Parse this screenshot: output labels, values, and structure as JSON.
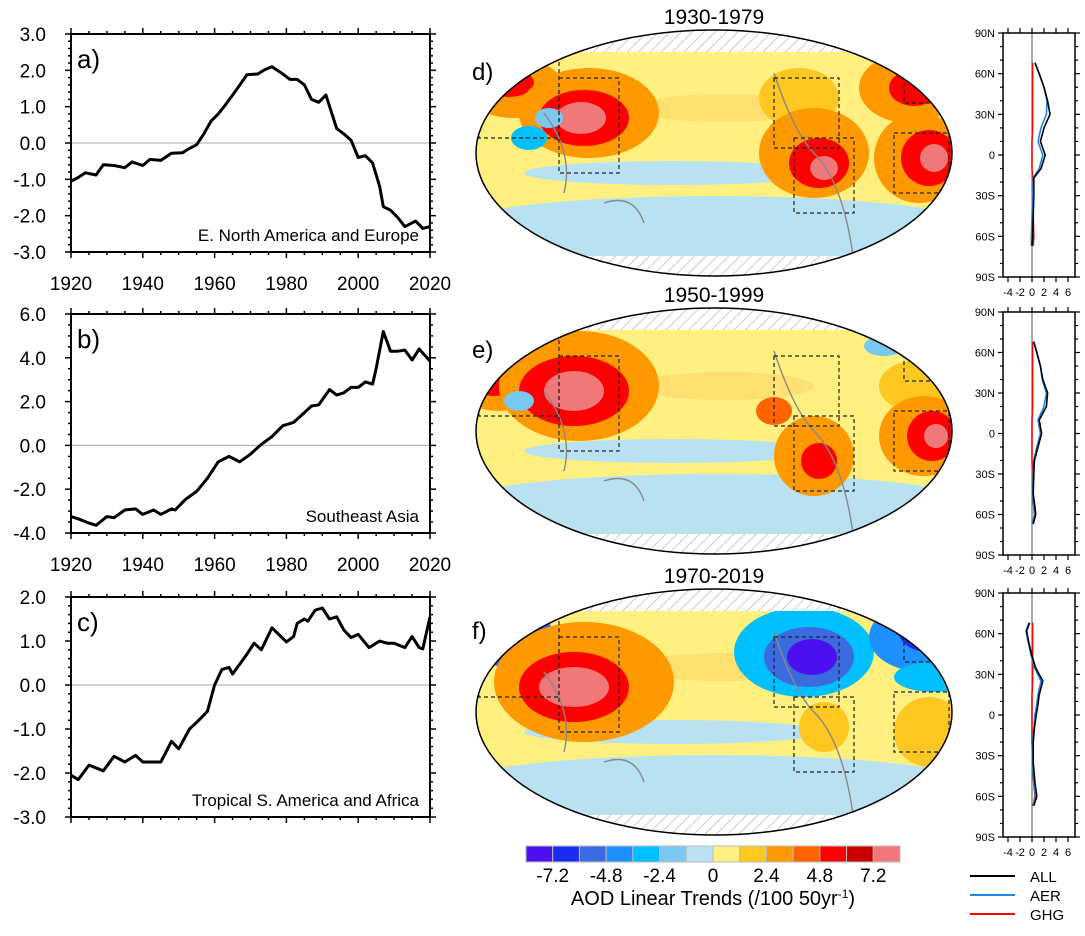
{
  "colors": {
    "line": "#000000",
    "zero_line": "#bbbbbb",
    "all": "#000000",
    "aer": "#1e88e5",
    "ghg": "#ff0000",
    "ocean_base": "#fff080",
    "hatch": "#999999"
  },
  "chart_data": [
    {
      "type": "line",
      "panel_label": "a)",
      "region": "E. North America and Europe",
      "xlim": [
        1920,
        2020
      ],
      "ylim": [
        -3.0,
        3.0
      ],
      "yticks": [
        "3.0",
        "2.0",
        "1.0",
        "0.0",
        "-1.0",
        "-2.0",
        "-3.0"
      ],
      "xticks": [
        "1920",
        "1940",
        "1960",
        "1980",
        "2000",
        "2020"
      ],
      "show_xlabels": true,
      "ymajor": 1.0,
      "yminor": 0.2,
      "x": [
        1920,
        1922,
        1924,
        1927,
        1929,
        1932,
        1935,
        1937,
        1940,
        1942,
        1945,
        1948,
        1951,
        1953,
        1955,
        1957,
        1959,
        1961,
        1963,
        1966,
        1969,
        1972,
        1974,
        1976,
        1979,
        1981,
        1983,
        1985,
        1987,
        1989,
        1991,
        1994,
        1996,
        1998,
        2000,
        2002,
        2004,
        2006,
        2007,
        2009,
        2011,
        2013,
        2016,
        2018,
        2020
      ],
      "y": [
        -1.05,
        -0.95,
        -0.82,
        -0.88,
        -0.6,
        -0.62,
        -0.68,
        -0.52,
        -0.62,
        -0.45,
        -0.48,
        -0.28,
        -0.27,
        -0.15,
        -0.05,
        0.25,
        0.6,
        0.8,
        1.05,
        1.45,
        1.88,
        1.9,
        2.02,
        2.1,
        1.9,
        1.75,
        1.75,
        1.6,
        1.2,
        1.12,
        1.32,
        0.4,
        0.25,
        0.08,
        -0.4,
        -0.35,
        -0.55,
        -1.2,
        -1.75,
        -1.85,
        -2.05,
        -2.3,
        -2.15,
        -2.35,
        -2.3
      ]
    },
    {
      "type": "line",
      "panel_label": "b)",
      "region": "Southeast Asia",
      "xlim": [
        1920,
        2020
      ],
      "ylim": [
        -4.0,
        6.0
      ],
      "yticks": [
        "6.0",
        "4.0",
        "2.0",
        "0.0",
        "-2.0",
        "-4.0"
      ],
      "xticks": [
        "1920",
        "1940",
        "1960",
        "1980",
        "2000",
        "2020"
      ],
      "show_xlabels": true,
      "ymajor": 2.0,
      "yminor": 0.5,
      "x": [
        1920,
        1922,
        1925,
        1927,
        1930,
        1932,
        1935,
        1938,
        1940,
        1943,
        1945,
        1948,
        1949,
        1952,
        1955,
        1958,
        1961,
        1964,
        1967,
        1970,
        1973,
        1976,
        1979,
        1982,
        1985,
        1987,
        1989,
        1992,
        1994,
        1996,
        1998,
        2000,
        2002,
        2004,
        2005,
        2007,
        2009,
        2011,
        2013,
        2015,
        2017,
        2020
      ],
      "y": [
        -3.25,
        -3.35,
        -3.55,
        -3.65,
        -3.25,
        -3.3,
        -2.95,
        -2.9,
        -3.15,
        -2.95,
        -3.15,
        -2.9,
        -2.95,
        -2.45,
        -2.1,
        -1.5,
        -0.75,
        -0.5,
        -0.75,
        -0.4,
        0.05,
        0.4,
        0.9,
        1.05,
        1.5,
        1.8,
        1.85,
        2.55,
        2.3,
        2.4,
        2.65,
        2.65,
        2.9,
        2.8,
        3.5,
        5.2,
        4.3,
        4.3,
        4.35,
        3.9,
        4.4,
        3.85
      ]
    },
    {
      "type": "line",
      "panel_label": "c)",
      "region": "Tropical S. America and Africa",
      "xlim": [
        1920,
        2020
      ],
      "ylim": [
        -3.0,
        2.0
      ],
      "yticks": [
        "2.0",
        "1.0",
        "0.0",
        "-1.0",
        "-2.0",
        "-3.0"
      ],
      "xticks": [],
      "show_xlabels": false,
      "ymajor": 1.0,
      "yminor": 0.2,
      "x": [
        1920,
        1922,
        1925,
        1929,
        1932,
        1935,
        1938,
        1940,
        1945,
        1948,
        1950,
        1953,
        1955,
        1958,
        1960,
        1962,
        1964,
        1965,
        1969,
        1971,
        1973,
        1976,
        1980,
        1982,
        1983,
        1985,
        1986,
        1988,
        1990,
        1992,
        1994,
        1996,
        1998,
        2000,
        2003,
        2006,
        2008,
        2010,
        2013,
        2015,
        2017,
        2018,
        2020
      ],
      "y": [
        -2.05,
        -2.15,
        -1.82,
        -1.95,
        -1.62,
        -1.75,
        -1.6,
        -1.75,
        -1.75,
        -1.28,
        -1.45,
        -1.0,
        -0.85,
        -0.6,
        0.0,
        0.35,
        0.4,
        0.25,
        0.7,
        0.95,
        0.8,
        1.3,
        0.98,
        1.1,
        1.4,
        1.5,
        1.45,
        1.7,
        1.75,
        1.5,
        1.55,
        1.25,
        1.08,
        1.15,
        0.85,
        1.0,
        0.95,
        0.95,
        0.85,
        1.1,
        0.85,
        0.82,
        1.55
      ]
    },
    {
      "type": "map",
      "title": "1930-1979",
      "panel_label": "d)",
      "profile": {
        "type": "line",
        "ylim_deg": [
          -90,
          90
        ],
        "xlim": [
          -4,
          6
        ],
        "yticks": [
          "90N",
          "60N",
          "30N",
          "0",
          "30S",
          "60S",
          "90S"
        ],
        "xticks": [
          "-4",
          "-2",
          "0",
          "2",
          "4",
          "6"
        ],
        "lat": [
          68,
          60,
          50,
          40,
          30,
          20,
          10,
          0,
          -10,
          -17,
          -30,
          -45,
          -60,
          -67
        ],
        "ALL": [
          0.5,
          1.2,
          2.0,
          2.6,
          3.0,
          2.0,
          1.4,
          2.2,
          1.5,
          0.3,
          0.3,
          0.2,
          0.1,
          0.0
        ],
        "AER": [
          0.5,
          1.2,
          2.0,
          2.5,
          2.4,
          1.5,
          1.0,
          1.8,
          1.2,
          0.2,
          0.1,
          0.0,
          -0.1,
          -0.1
        ],
        "GHG": [
          0.1,
          0.1,
          0.1,
          0.1,
          0.1,
          0.1,
          0.0,
          0.0,
          0.0,
          0.1,
          0.1,
          0.2,
          0.3,
          0.2
        ]
      }
    },
    {
      "type": "map",
      "title": "1950-1999",
      "panel_label": "e)",
      "profile": {
        "type": "line",
        "ylim_deg": [
          -90,
          90
        ],
        "xlim": [
          -4,
          6
        ],
        "yticks": [
          "90N",
          "60N",
          "30N",
          "0",
          "30S",
          "60S",
          "90S"
        ],
        "xticks": [
          "-4",
          "-2",
          "0",
          "2",
          "4",
          "6"
        ],
        "lat": [
          68,
          60,
          50,
          40,
          30,
          20,
          10,
          0,
          -10,
          -20,
          -30,
          -45,
          -55,
          -60,
          -67
        ],
        "ALL": [
          0.3,
          0.8,
          1.4,
          1.8,
          2.6,
          2.4,
          1.2,
          1.6,
          1.0,
          0.4,
          0.3,
          0.2,
          0.5,
          0.6,
          0.2
        ],
        "AER": [
          0.3,
          0.8,
          1.4,
          1.7,
          2.4,
          2.0,
          1.0,
          1.4,
          0.8,
          0.3,
          0.2,
          0.1,
          0.3,
          0.4,
          0.1
        ],
        "GHG": [
          0.1,
          0.1,
          0.1,
          0.1,
          0.1,
          0.1,
          0.0,
          0.0,
          0.0,
          0.0,
          0.1,
          0.2,
          0.5,
          0.6,
          0.2
        ]
      }
    },
    {
      "type": "map",
      "title": "1970-2019",
      "panel_label": "f)",
      "profile": {
        "type": "line",
        "ylim_deg": [
          -90,
          90
        ],
        "xlim": [
          -4,
          6
        ],
        "yticks": [
          "90N",
          "60N",
          "30N",
          "0",
          "30S",
          "60S",
          "90S"
        ],
        "xticks": [
          "-4",
          "-2",
          "0",
          "2",
          "4",
          "6"
        ],
        "lat": [
          68,
          62,
          55,
          45,
          35,
          25,
          15,
          5,
          0,
          -10,
          -20,
          -35,
          -50,
          -60,
          -67
        ],
        "ALL": [
          -0.4,
          -0.9,
          -0.6,
          -0.1,
          0.6,
          1.8,
          1.2,
          0.9,
          0.7,
          0.4,
          0.2,
          0.2,
          0.5,
          0.8,
          0.3
        ],
        "AER": [
          -0.5,
          -1.0,
          -0.7,
          -0.2,
          0.4,
          1.5,
          1.0,
          0.7,
          0.5,
          0.3,
          0.1,
          0.1,
          0.3,
          0.6,
          0.2
        ],
        "GHG": [
          0.1,
          0.1,
          0.1,
          0.1,
          0.1,
          0.1,
          0.0,
          0.0,
          0.0,
          0.0,
          0.0,
          0.1,
          0.3,
          0.5,
          0.2
        ]
      }
    }
  ],
  "colorbar": {
    "colors": [
      "#4a10f0",
      "#1a2cf0",
      "#3a6be0",
      "#1e90ff",
      "#00bfff",
      "#78c8f0",
      "#b8e2f2",
      "#fff080",
      "#ffc820",
      "#ff9900",
      "#ff6400",
      "#ff0000",
      "#c80000",
      "#f07878"
    ],
    "labels": [
      "-7.2",
      "-4.8",
      "-2.4",
      "0",
      "2.4",
      "4.8",
      "7.2"
    ],
    "title": "AOD Linear Trends (/100 50yr",
    "title_sup": "-1",
    "title_end": ")"
  },
  "legend": [
    {
      "label": "ALL",
      "color": "#000000"
    },
    {
      "label": "AER",
      "color": "#1e88e5"
    },
    {
      "label": "GHG",
      "color": "#ff0000"
    }
  ]
}
